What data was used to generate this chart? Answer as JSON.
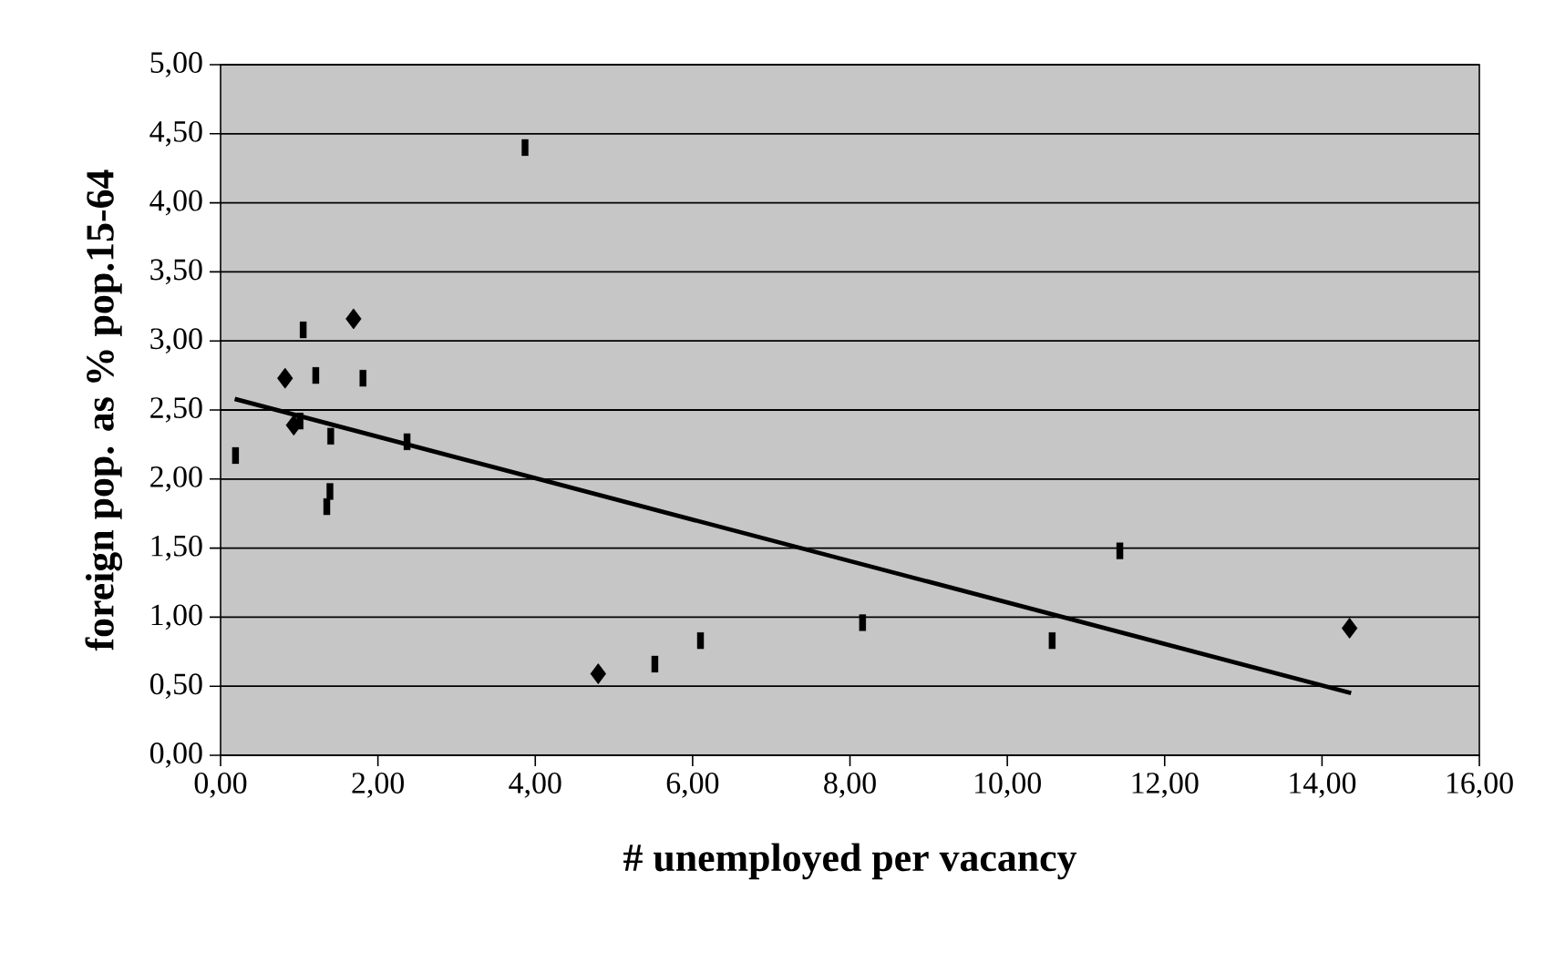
{
  "chart_data": {
    "type": "scatter",
    "xlabel": "# unemployed per vacancy",
    "ylabel": "foreign pop. as % pop.15-64",
    "xlim": [
      0,
      16
    ],
    "ylim": [
      0,
      5
    ],
    "xticks": [
      {
        "value": 0,
        "label": "0,00"
      },
      {
        "value": 2,
        "label": "2,00"
      },
      {
        "value": 4,
        "label": "4,00"
      },
      {
        "value": 6,
        "label": "6,00"
      },
      {
        "value": 8,
        "label": "8,00"
      },
      {
        "value": 10,
        "label": "10,00"
      },
      {
        "value": 12,
        "label": "12,00"
      },
      {
        "value": 14,
        "label": "14,00"
      },
      {
        "value": 16,
        "label": "16,00"
      }
    ],
    "yticks": [
      {
        "value": 0,
        "label": "0,00"
      },
      {
        "value": 0.5,
        "label": "0,50"
      },
      {
        "value": 1,
        "label": "1,00"
      },
      {
        "value": 1.5,
        "label": "1,50"
      },
      {
        "value": 2,
        "label": "2,00"
      },
      {
        "value": 2.5,
        "label": "2,50"
      },
      {
        "value": 3,
        "label": "3,00"
      },
      {
        "value": 3.5,
        "label": "3,50"
      },
      {
        "value": 4,
        "label": "4,00"
      },
      {
        "value": 4.5,
        "label": "4,50"
      },
      {
        "value": 5,
        "label": "5,00"
      }
    ],
    "grid": "y",
    "series": [
      {
        "color": "#000000",
        "marker": "diamond",
        "x": [
          0.82,
          0.93,
          1.69,
          4.8,
          14.35
        ],
        "values": [
          2.73,
          2.39,
          3.16,
          0.59,
          0.92
        ]
      },
      {
        "color": "#000000",
        "marker": "square",
        "x": [
          0.19,
          1.05,
          1.21,
          1.81,
          1.01,
          1.4,
          1.39,
          1.35,
          2.37,
          3.87,
          5.52,
          6.1,
          8.16,
          10.57,
          11.43
        ],
        "values": [
          2.17,
          3.08,
          2.75,
          2.73,
          2.42,
          2.31,
          1.91,
          1.8,
          2.27,
          4.4,
          0.66,
          0.83,
          0.96,
          0.83,
          1.48
        ]
      },
      {
        "type": "line",
        "color": "#000000",
        "marker": "none",
        "x": [
          0.18,
          14.37
        ],
        "values": [
          2.58,
          0.45
        ]
      }
    ]
  }
}
